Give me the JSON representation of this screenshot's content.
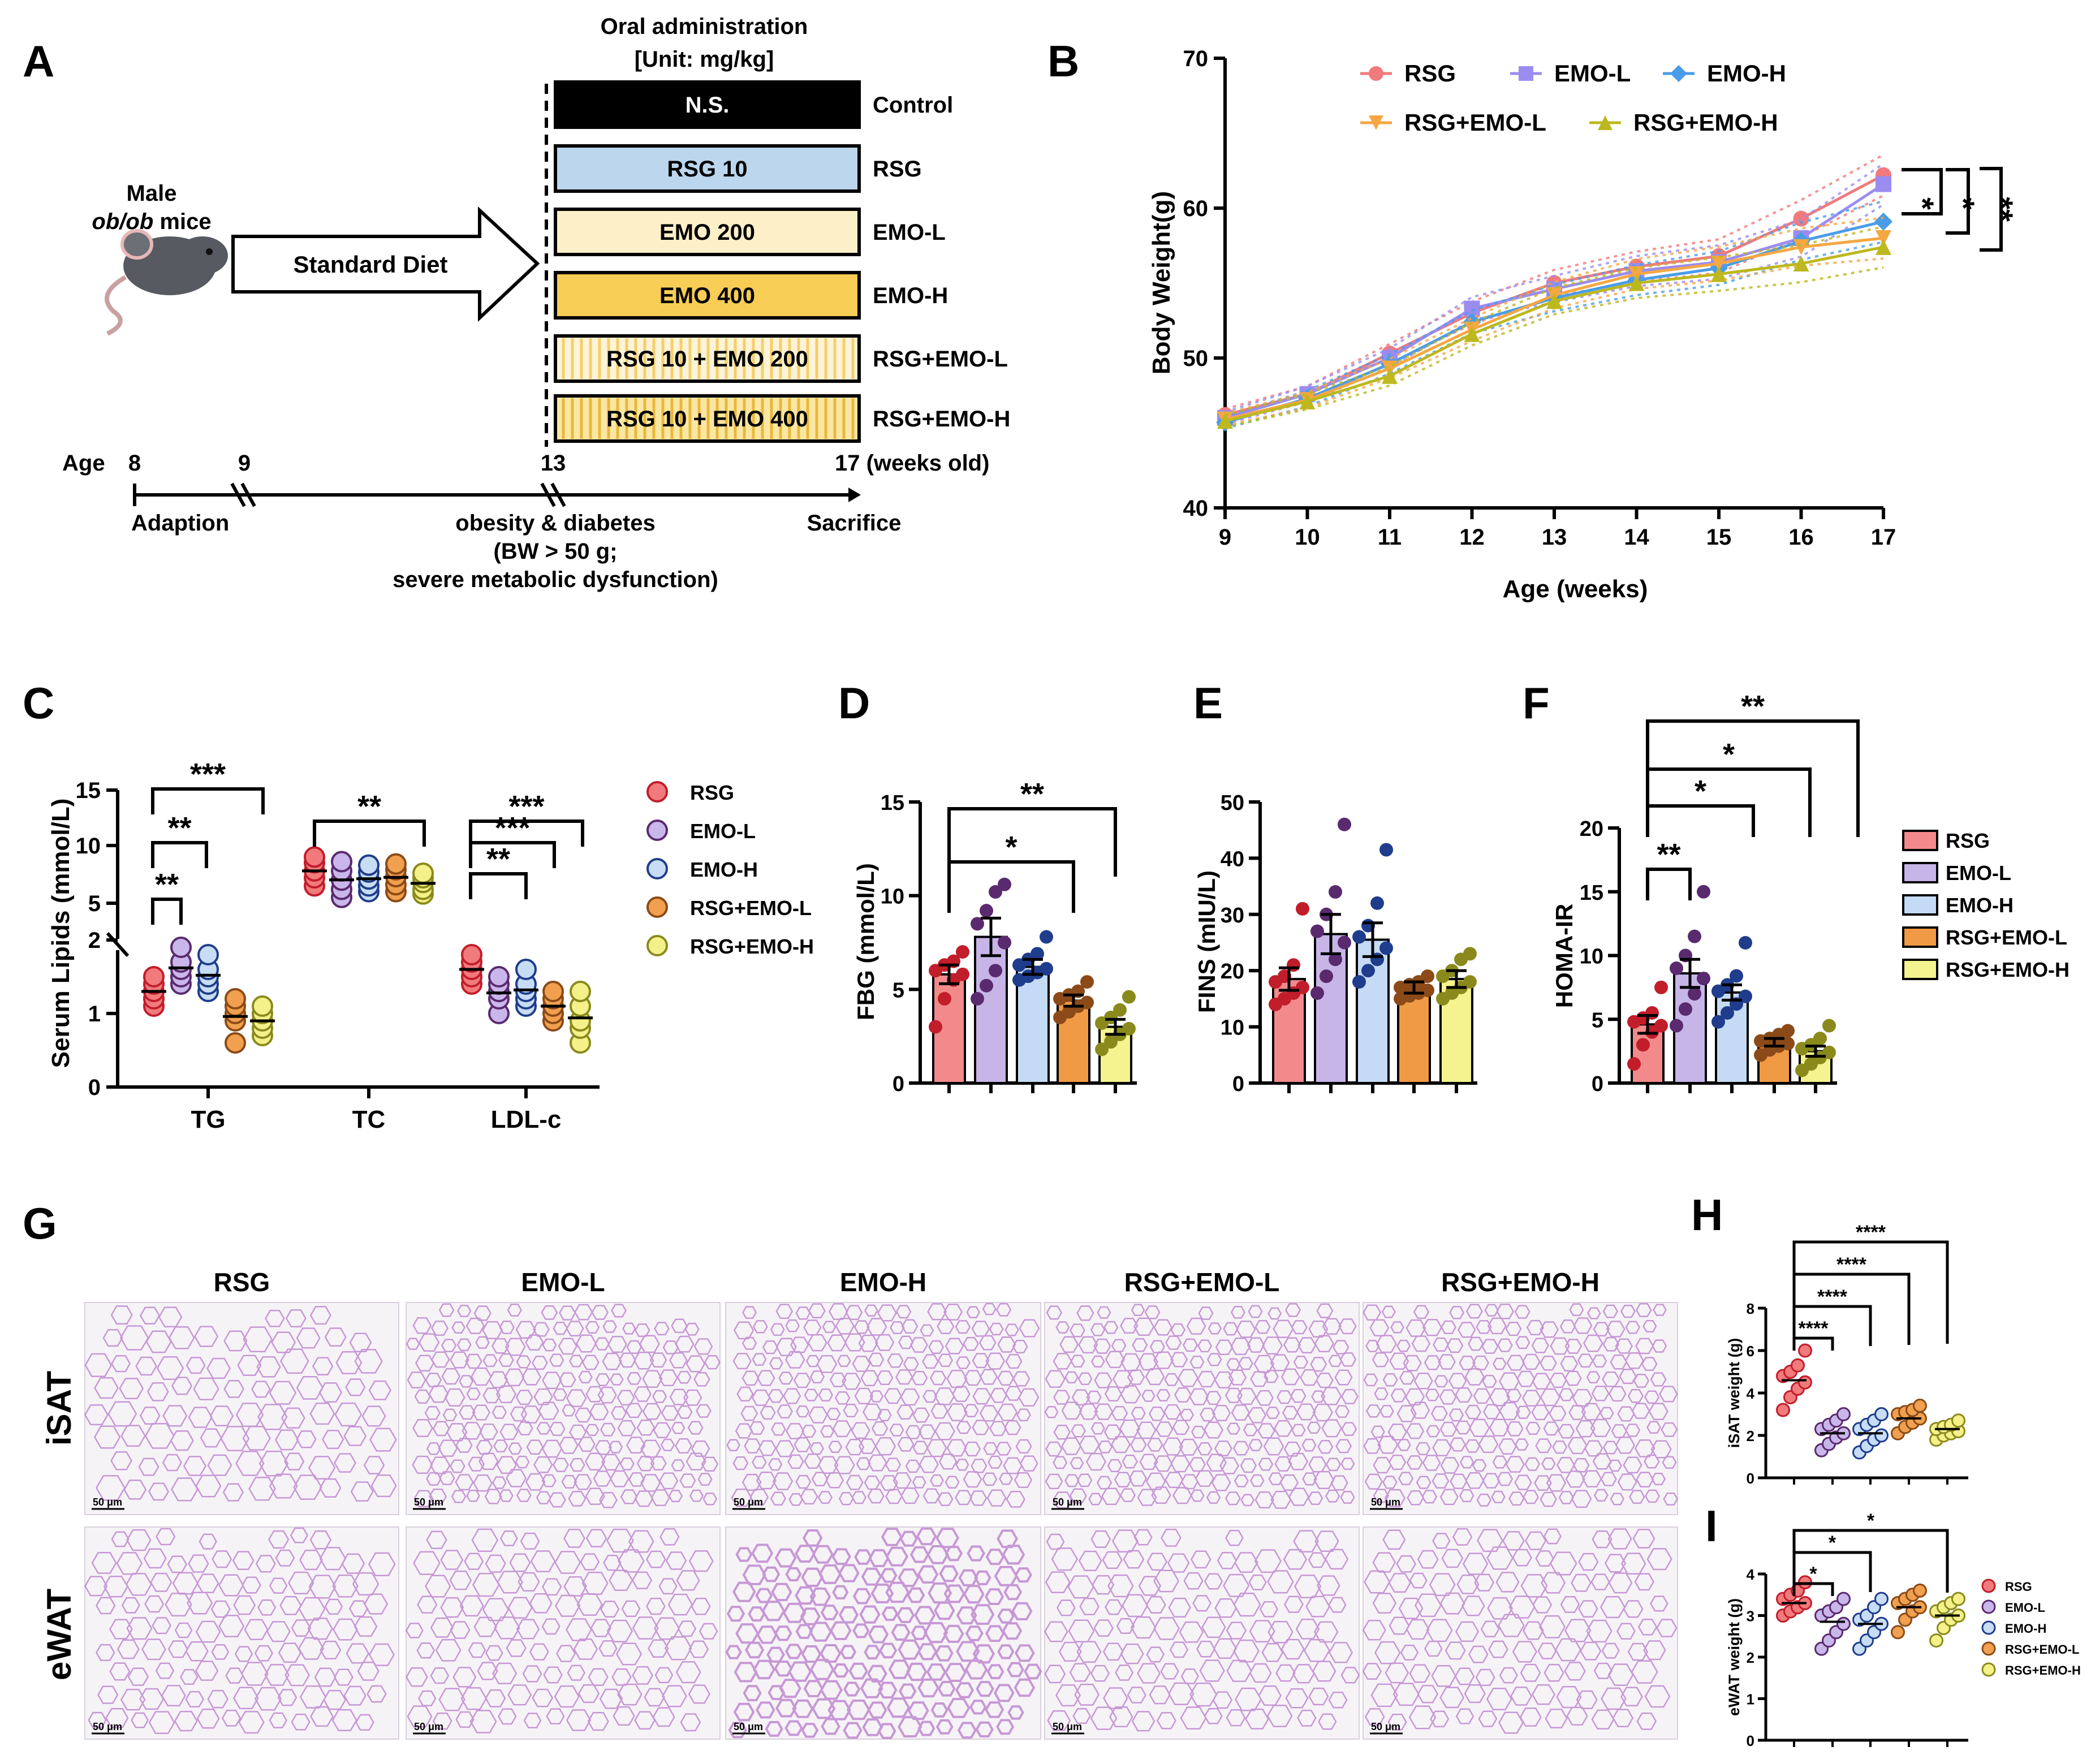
{
  "colors": {
    "RSG": {
      "fill": "#f07a7c",
      "dark": "#c21d2a",
      "bar": "#f28a8c"
    },
    "EMO-L": {
      "fill": "#c9b6ea",
      "dark": "#5a2a6e",
      "bar": "#c7b5e8"
    },
    "EMO-H": {
      "fill": "#c7dcf5",
      "dark": "#1f3d8c",
      "bar": "#c5dbf5"
    },
    "RSG+EMO-L": {
      "fill": "#f0a04e",
      "dark": "#8b4a17",
      "bar": "#f19a45"
    },
    "RSG+EMO-H": {
      "fill": "#f4f08a",
      "dark": "#8a8a1c",
      "bar": "#f5f38f"
    },
    "B_RSG": "#f07a7c",
    "B_EMOL": "#9b8cf0",
    "B_EMOH": "#4a9ce8",
    "B_RSGEMOL": "#f5a742",
    "B_RSGEMOH": "#bdb81f"
  },
  "panels": {
    "A": "A",
    "B": "B",
    "C": "C",
    "D": "D",
    "E": "E",
    "F": "F",
    "G": "G",
    "H": "H",
    "I": "I"
  },
  "schema": {
    "title1": "Oral administration",
    "title2": "[Unit: mg/kg]",
    "mouse1": "Male",
    "mouse2": "ob/ob",
    "mouse3": " mice",
    "arrow": "Standard Diet",
    "boxes": [
      {
        "text": "N.S.",
        "group": "Control",
        "fill": "#000000",
        "color": "#ffffff",
        "stripes": false
      },
      {
        "text": "RSG 10",
        "group": "RSG",
        "fill": "#bcd6ee",
        "color": "#000000",
        "stripes": false
      },
      {
        "text": "EMO 200",
        "group": "EMO-L",
        "fill": "#fdf0c9",
        "color": "#000000",
        "stripes": false
      },
      {
        "text": "EMO 400",
        "group": "EMO-H",
        "fill": "#f7cd56",
        "color": "#000000",
        "stripes": false
      },
      {
        "text": "RSG 10 + EMO 200",
        "group": "RSG+EMO-L",
        "fill": "#fdf3d8",
        "color": "#000000",
        "stripes": true
      },
      {
        "text": "RSG 10 + EMO 400",
        "group": "RSG+EMO-H",
        "fill": "#fbe7a3",
        "color": "#000000",
        "stripes": true
      }
    ],
    "age": "Age",
    "t8": "8",
    "t9": "9",
    "t13": "13",
    "t17": "17 (weeks old)",
    "adaption": "Adaption",
    "obesity": "obesity & diabetes",
    "bw": "(BW > 50 g;",
    "severe": "severe metabolic dysfunction)",
    "sacrifice": "Sacrifice"
  },
  "chart_data": [
    {
      "panel": "B",
      "type": "line",
      "ylabel": "Body Weight(g)",
      "xlabel": "Age (weeks)",
      "ylim": [
        40,
        70
      ],
      "yticks": [
        40,
        50,
        60,
        70
      ],
      "x": [
        9,
        10,
        11,
        12,
        13,
        14,
        15,
        16,
        17
      ],
      "legend": [
        "RSG",
        "EMO-L",
        "EMO-H",
        "RSG+EMO-L",
        "RSG+EMO-H"
      ],
      "series": [
        {
          "name": "RSG",
          "values": [
            46.2,
            47.6,
            50.3,
            53.0,
            55.0,
            56.1,
            56.8,
            59.3,
            62.2
          ]
        },
        {
          "name": "EMO-L",
          "values": [
            46.0,
            47.6,
            50.0,
            53.3,
            54.6,
            55.8,
            56.4,
            58.0,
            61.6
          ]
        },
        {
          "name": "EMO-H",
          "values": [
            45.7,
            47.3,
            49.6,
            52.4,
            54.0,
            55.2,
            56.0,
            57.8,
            59.1
          ]
        },
        {
          "name": "RSG+EMO-L",
          "values": [
            45.9,
            47.2,
            49.3,
            51.9,
            54.2,
            55.6,
            56.3,
            57.4,
            58.0
          ]
        },
        {
          "name": "RSG+EMO-H",
          "values": [
            45.8,
            47.1,
            48.8,
            51.6,
            53.8,
            55.0,
            55.6,
            56.3,
            57.4
          ]
        }
      ],
      "sig": [
        "*",
        "*",
        "**"
      ]
    },
    {
      "panel": "C",
      "type": "scatter",
      "ylabel": "Serum Lipids (mmol/L)",
      "categories": [
        "TG",
        "TC",
        "LDL-c"
      ],
      "yticks": [
        "0",
        "1",
        "2",
        "5",
        "10",
        "15"
      ],
      "legend": [
        "RSG",
        "EMO-L",
        "EMO-H",
        "RSG+EMO-L",
        "RSG+EMO-H"
      ],
      "TG": {
        "RSG": [
          1.1,
          1.2,
          1.3,
          1.4,
          1.5
        ],
        "EMO-L": [
          1.4,
          1.5,
          1.6,
          1.7,
          1.9
        ],
        "EMO-H": [
          1.3,
          1.4,
          1.5,
          1.6,
          1.8
        ],
        "RSG+EMO-L": [
          0.6,
          0.9,
          1.0,
          1.1,
          1.2
        ],
        "RSG+EMO-H": [
          0.7,
          0.8,
          0.9,
          1.0,
          1.1
        ]
      },
      "TC": {
        "RSG": [
          6.5,
          7.2,
          7.8,
          8.5,
          9.0
        ],
        "EMO-L": [
          5.5,
          6.2,
          7.0,
          7.8,
          8.6
        ],
        "EMO-H": [
          6.0,
          6.5,
          7.1,
          7.7,
          8.3
        ],
        "RSG+EMO-L": [
          6.0,
          6.6,
          7.3,
          7.9,
          8.4
        ],
        "RSG+EMO-H": [
          5.8,
          6.2,
          6.8,
          7.2,
          7.6
        ]
      },
      "LDL-c": {
        "RSG": [
          1.4,
          1.5,
          1.6,
          1.7,
          1.8
        ],
        "EMO-L": [
          1.0,
          1.2,
          1.3,
          1.4,
          1.5
        ],
        "EMO-H": [
          1.1,
          1.2,
          1.3,
          1.4,
          1.6
        ],
        "RSG+EMO-L": [
          0.9,
          1.0,
          1.1,
          1.2,
          1.3
        ],
        "RSG+EMO-H": [
          0.6,
          0.8,
          0.9,
          1.1,
          1.3
        ]
      },
      "sig": {
        "TG": [
          "**",
          "**",
          "***"
        ],
        "TC": [
          "**"
        ],
        "LDL-c": [
          "**",
          "***",
          "***"
        ]
      }
    },
    {
      "panel": "D",
      "type": "bar",
      "ylabel": "FBG (mmol/L)",
      "ylim": [
        0,
        15
      ],
      "yticks": [
        0,
        5,
        10,
        15
      ],
      "categories": [
        "RSG",
        "EMO-L",
        "EMO-H",
        "RSG+EMO-L",
        "RSG+EMO-H"
      ],
      "values": [
        5.8,
        7.8,
        6.2,
        4.4,
        3.0
      ],
      "sem": [
        0.5,
        1.0,
        0.4,
        0.3,
        0.4
      ],
      "points": [
        [
          3.0,
          4.5,
          5.5,
          5.8,
          6.0,
          6.3,
          6.5,
          7.0
        ],
        [
          4.5,
          5.2,
          6.0,
          7.5,
          8.5,
          9.2,
          10.2,
          10.6
        ],
        [
          5.5,
          5.7,
          5.9,
          6.1,
          6.3,
          6.6,
          6.9,
          7.8
        ],
        [
          3.5,
          3.8,
          4.1,
          4.3,
          4.5,
          4.7,
          4.9,
          5.4
        ],
        [
          1.8,
          2.2,
          2.6,
          2.9,
          3.2,
          3.5,
          3.9,
          4.6
        ]
      ],
      "sig": [
        "*",
        "**"
      ]
    },
    {
      "panel": "E",
      "type": "bar",
      "ylabel": "FINS (mIU/L)",
      "ylim": [
        0,
        50
      ],
      "yticks": [
        0,
        10,
        20,
        30,
        40,
        50
      ],
      "categories": [
        "RSG",
        "EMO-L",
        "EMO-H",
        "RSG+EMO-L",
        "RSG+EMO-H"
      ],
      "values": [
        18.5,
        26.5,
        25.5,
        17.0,
        18.5
      ],
      "sem": [
        2.0,
        3.5,
        3.0,
        1.0,
        1.5
      ],
      "points": [
        [
          14,
          15,
          16,
          17,
          18,
          19,
          21,
          31
        ],
        [
          16,
          19,
          22,
          25,
          27,
          30,
          34,
          46
        ],
        [
          18,
          20,
          22,
          24,
          26,
          28,
          32,
          41.5
        ],
        [
          15,
          15.5,
          16,
          16.5,
          17,
          17.5,
          18,
          19
        ],
        [
          15,
          16,
          17,
          18,
          19,
          20,
          22,
          23
        ]
      ]
    },
    {
      "panel": "F",
      "type": "bar",
      "ylabel": "HOMA-IR",
      "ylim": [
        0,
        20
      ],
      "yticks": [
        0,
        5,
        10,
        15,
        20
      ],
      "categories": [
        "RSG",
        "EMO-L",
        "EMO-H",
        "RSG+EMO-L",
        "RSG+EMO-H"
      ],
      "values": [
        4.6,
        8.6,
        7.1,
        3.2,
        2.5
      ],
      "sem": [
        0.7,
        1.1,
        0.6,
        0.3,
        0.4
      ],
      "legend": [
        "RSG",
        "EMO-L",
        "EMO-H",
        "RSG+EMO-L",
        "RSG+EMO-H"
      ],
      "points": [
        [
          1.5,
          3.0,
          4.0,
          4.5,
          4.8,
          5.1,
          5.5,
          7.5
        ],
        [
          4.5,
          5.8,
          7.0,
          8.2,
          9.0,
          10.0,
          11.5,
          15.0
        ],
        [
          4.8,
          5.5,
          6.2,
          6.8,
          7.2,
          7.7,
          8.4,
          11.0
        ],
        [
          2.2,
          2.6,
          2.9,
          3.1,
          3.3,
          3.5,
          3.8,
          4.1
        ],
        [
          1.0,
          1.5,
          2.0,
          2.4,
          2.7,
          3.0,
          3.5,
          4.5
        ]
      ],
      "sig": [
        "**",
        "*",
        "*",
        "**"
      ]
    },
    {
      "panel": "H",
      "type": "scatter",
      "ylabel": "iSAT weight (g)",
      "ylim": [
        0,
        8
      ],
      "yticks": [
        0,
        2,
        4,
        6,
        8
      ],
      "categories": [
        "RSG",
        "EMO-L",
        "EMO-H",
        "RSG+EMO-L",
        "RSG+EMO-H"
      ],
      "means": [
        4.6,
        2.1,
        2.1,
        2.8,
        2.3
      ],
      "points": [
        [
          3.2,
          3.8,
          4.2,
          4.5,
          4.8,
          5.0,
          5.3,
          6.0
        ],
        [
          1.3,
          1.6,
          1.9,
          2.1,
          2.3,
          2.5,
          2.7,
          3.0
        ],
        [
          1.2,
          1.5,
          1.8,
          2.0,
          2.3,
          2.5,
          2.7,
          3.0
        ],
        [
          2.1,
          2.4,
          2.6,
          2.8,
          3.0,
          3.1,
          3.2,
          3.4
        ],
        [
          1.8,
          2.0,
          2.1,
          2.2,
          2.3,
          2.4,
          2.5,
          2.7
        ]
      ],
      "sig": [
        "****",
        "****",
        "****",
        "****"
      ]
    },
    {
      "panel": "I",
      "type": "scatter",
      "ylabel": "eWAT weight (g)",
      "ylim": [
        0,
        4
      ],
      "yticks": [
        0,
        1,
        2,
        3,
        4
      ],
      "categories": [
        "RSG",
        "EMO-L",
        "EMO-H",
        "RSG+EMO-L",
        "RSG+EMO-H"
      ],
      "means": [
        3.3,
        2.85,
        2.8,
        3.2,
        3.0
      ],
      "legend": [
        "RSG",
        "EMO-L",
        "EMO-H",
        "RSG+EMO-L",
        "RSG+EMO-H"
      ],
      "points": [
        [
          3.0,
          3.1,
          3.2,
          3.3,
          3.4,
          3.5,
          3.6,
          3.8
        ],
        [
          2.2,
          2.4,
          2.6,
          2.8,
          3.0,
          3.1,
          3.2,
          3.4
        ],
        [
          2.2,
          2.4,
          2.6,
          2.8,
          2.9,
          3.0,
          3.2,
          3.4
        ],
        [
          2.6,
          2.9,
          3.1,
          3.2,
          3.3,
          3.4,
          3.5,
          3.6
        ],
        [
          2.4,
          2.7,
          2.9,
          3.0,
          3.1,
          3.2,
          3.3,
          3.4
        ]
      ],
      "sig": [
        "*",
        "*",
        "*"
      ]
    }
  ],
  "histology": {
    "groups": [
      "RSG",
      "EMO-L",
      "EMO-H",
      "RSG+EMO-L",
      "RSG+EMO-H"
    ],
    "rows": [
      "iSAT",
      "eWAT"
    ],
    "scale": "50 μm"
  }
}
